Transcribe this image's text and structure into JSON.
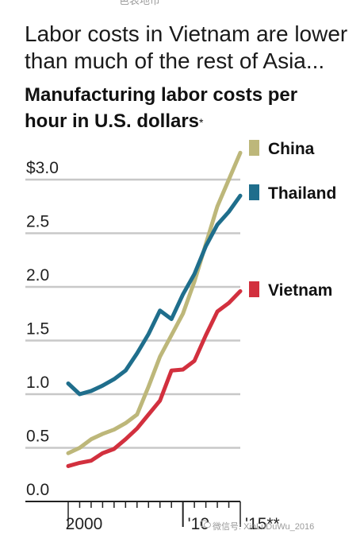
{
  "top_fragment": "色表地币",
  "headline": "Labor costs in Vietnam are lower than much of the rest of Asia...",
  "watermark": "微信号: XinLuDuWu_2016",
  "chart_data": {
    "type": "line",
    "title": "Manufacturing labor costs per hour in U.S. dollars",
    "title_marker": "*",
    "xlabel": "",
    "ylabel": "",
    "ylim": [
      0,
      3.2
    ],
    "xlim": [
      2000,
      2015
    ],
    "grid": true,
    "legend_placement": "right",
    "y_ticks": [
      {
        "value": 0.0,
        "label": "0.0"
      },
      {
        "value": 0.5,
        "label": "0.5"
      },
      {
        "value": 1.0,
        "label": "1.0"
      },
      {
        "value": 1.5,
        "label": "1.5"
      },
      {
        "value": 2.0,
        "label": "2.0"
      },
      {
        "value": 2.5,
        "label": "2.5"
      },
      {
        "value": 3.0,
        "label": "$3.0"
      }
    ],
    "x_ticks": [
      {
        "value": 2000,
        "label": "2000"
      },
      {
        "value": 2010,
        "label": "'10"
      },
      {
        "value": 2015,
        "label": "'15**"
      }
    ],
    "x": [
      2000,
      2001,
      2002,
      2003,
      2004,
      2005,
      2006,
      2007,
      2008,
      2009,
      2010,
      2011,
      2012,
      2013,
      2014,
      2015
    ],
    "series": [
      {
        "name": "China",
        "color": "#bdb77a",
        "values": [
          0.45,
          0.5,
          0.58,
          0.63,
          0.67,
          0.73,
          0.81,
          1.07,
          1.35,
          1.55,
          1.75,
          2.05,
          2.4,
          2.75,
          3.0,
          3.25
        ]
      },
      {
        "name": "Thailand",
        "color": "#1f6e8c",
        "values": [
          1.1,
          1.0,
          1.03,
          1.08,
          1.14,
          1.22,
          1.38,
          1.56,
          1.78,
          1.7,
          1.93,
          2.12,
          2.38,
          2.58,
          2.7,
          2.85
        ]
      },
      {
        "name": "Vietnam",
        "color": "#d2303e",
        "values": [
          0.33,
          0.36,
          0.38,
          0.45,
          0.49,
          0.58,
          0.68,
          0.81,
          0.94,
          1.22,
          1.23,
          1.31,
          1.55,
          1.77,
          1.85,
          1.96
        ]
      }
    ]
  }
}
